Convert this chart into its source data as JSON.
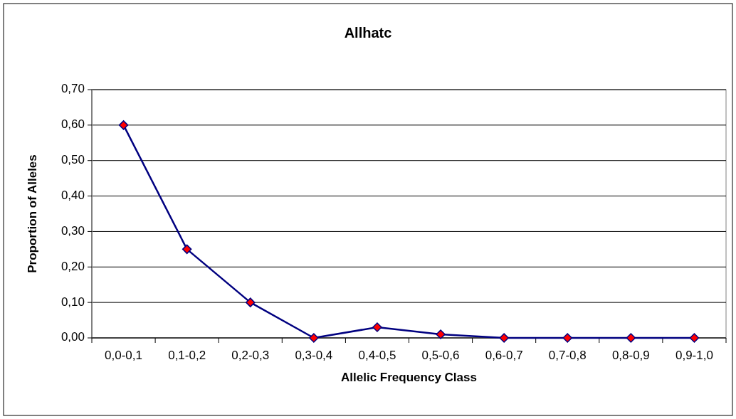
{
  "chart_data": {
    "type": "line",
    "title": "Allhatc",
    "xlabel": "Allelic Frequency Class",
    "ylabel": "Proportion of Alleles",
    "categories": [
      "0,0-0,1",
      "0,1-0,2",
      "0,2-0,3",
      "0,3-0,4",
      "0,4-0,5",
      "0,5-0,6",
      "0,6-0,7",
      "0,7-0,8",
      "0,8-0,9",
      "0,9-1,0"
    ],
    "series": [
      {
        "color": "#000080",
        "values": [
          0.6,
          0.25,
          0.1,
          0,
          0.03,
          0.01,
          0,
          0,
          0,
          0
        ]
      }
    ],
    "ylim": [
      0,
      0.7
    ],
    "yticks": [
      {
        "value": 0,
        "label": "0,00"
      },
      {
        "value": 0.1,
        "label": "0,10"
      },
      {
        "value": 0.2,
        "label": "0,20"
      },
      {
        "value": 0.3,
        "label": "0,30"
      },
      {
        "value": 0.4,
        "label": "0,40"
      },
      {
        "value": 0.5,
        "label": "0,50"
      },
      {
        "value": 0.6,
        "label": "0,60"
      },
      {
        "value": 0.7,
        "label": "0,70"
      }
    ],
    "grid": "y",
    "marker": "diamond",
    "line_style": "solid"
  }
}
